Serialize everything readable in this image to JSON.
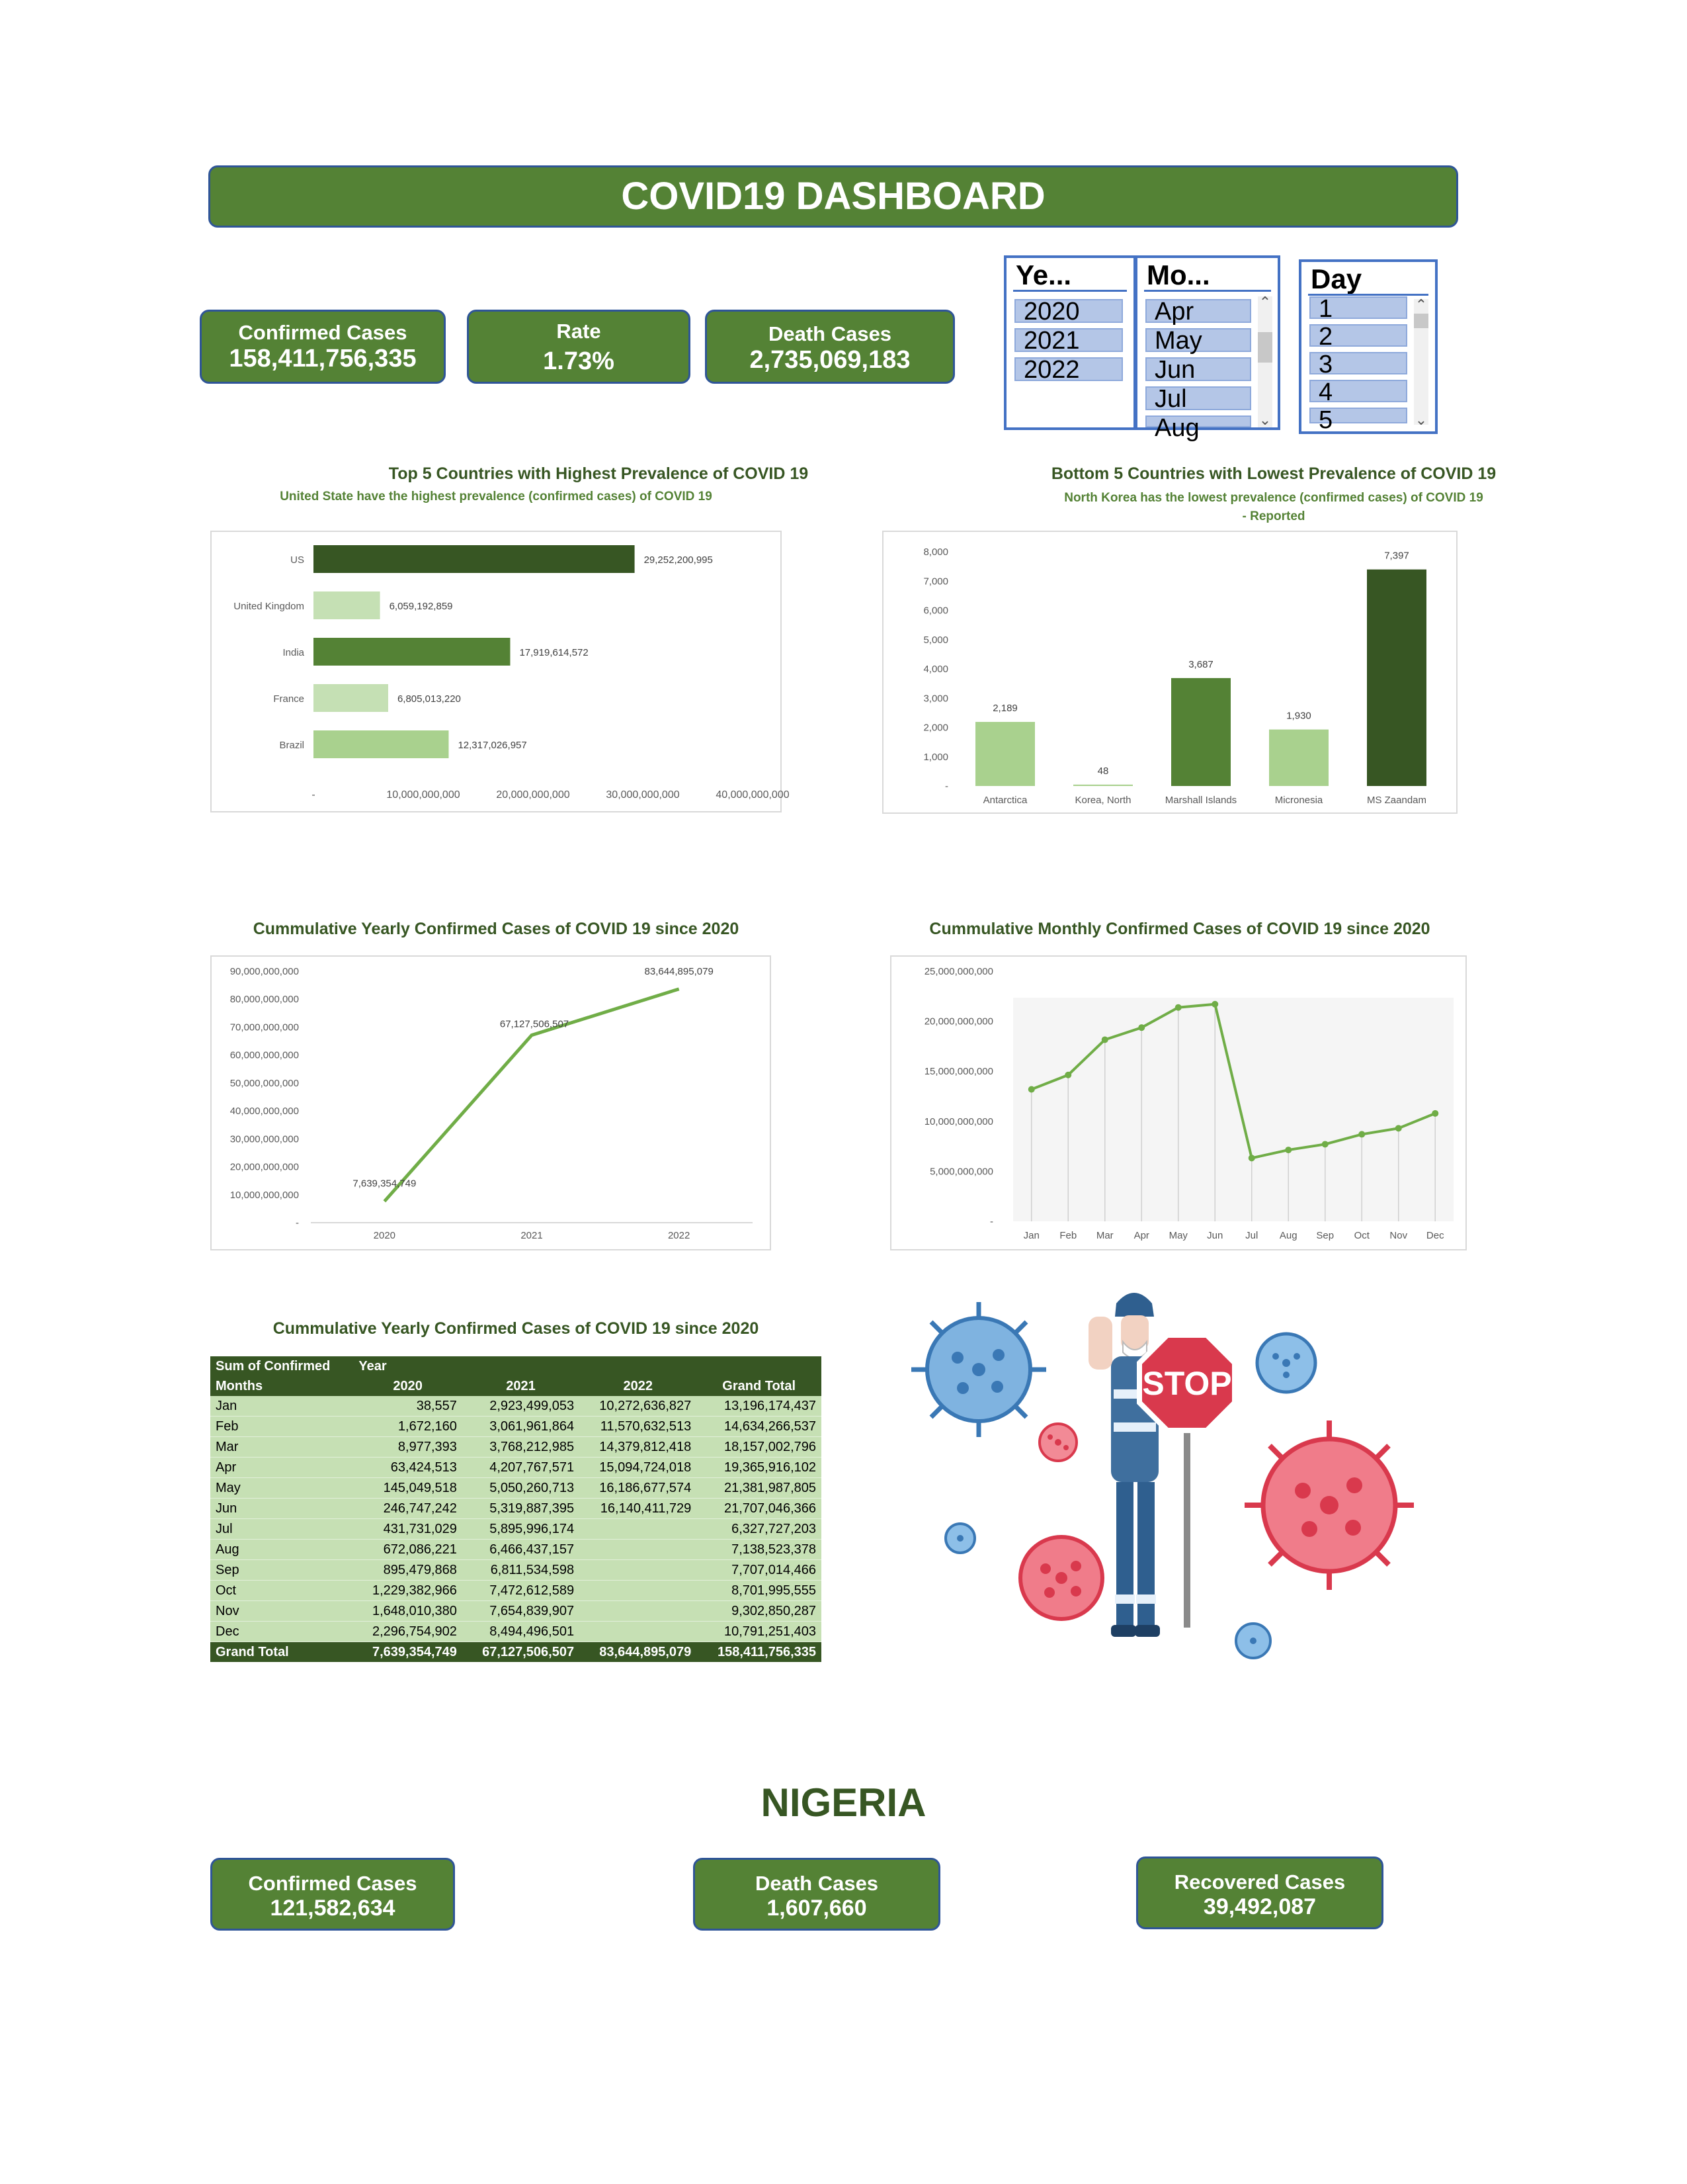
{
  "dashboard": {
    "title": "COVID19 DASHBOARD"
  },
  "kpis": {
    "confirmed": {
      "label": "Confirmed Cases",
      "value": "158,411,756,335"
    },
    "rate": {
      "label": "Rate",
      "value": "1.73%"
    },
    "deaths": {
      "label": "Death Cases",
      "value": "2,735,069,183"
    }
  },
  "slicers": {
    "year": {
      "header": "Ye...",
      "items": [
        "2020",
        "2021",
        "2022"
      ]
    },
    "month": {
      "header": "Mo...",
      "items": [
        "Apr",
        "May",
        "Jun",
        "Jul",
        "Aug"
      ]
    },
    "day": {
      "header": "Day",
      "items": [
        "1",
        "2",
        "3",
        "4",
        "5"
      ]
    }
  },
  "charts": {
    "top5": {
      "title": "Top 5 Countries with Highest Prevalence of COVID 19",
      "subtitle": "United State have the highest prevalence (confirmed cases) of COVID 19"
    },
    "bottom5": {
      "title": "Bottom 5 Countries with Lowest Prevalence of COVID 19",
      "subtitle1": "North Korea has the lowest prevalence (confirmed cases) of COVID 19",
      "subtitle2": "- Reported"
    },
    "yearly": {
      "title": "Cummulative Yearly Confirmed Cases of COVID 19 since 2020"
    },
    "monthly": {
      "title": "Cummulative Monthly Confirmed Cases of COVID 19 since 2020"
    }
  },
  "chart_data": [
    {
      "type": "bar",
      "orientation": "horizontal",
      "categories": [
        "US",
        "United Kingdom",
        "India",
        "France",
        "Brazil"
      ],
      "values": [
        29252200995,
        6059192859,
        17919614572,
        6805013220,
        12317026957
      ],
      "value_labels": [
        "29,252,200,995",
        "6,059,192,859",
        "17,919,614,572",
        "6,805,013,220",
        "12,317,026,957"
      ],
      "colors": [
        "#375623",
        "#c5e0b4",
        "#548235",
        "#c5e0b4",
        "#a9d18e"
      ],
      "xlim": [
        0,
        40000000000
      ],
      "xticks": [
        "-",
        "10,000,000,000",
        "20,000,000,000",
        "30,000,000,000",
        "40,000,000,000"
      ],
      "title": "Top 5 Countries with Highest Prevalence of COVID 19"
    },
    {
      "type": "bar",
      "categories": [
        "Antarctica",
        "Korea, North",
        "Marshall Islands",
        "Micronesia",
        "MS Zaandam"
      ],
      "values": [
        2189,
        48,
        3687,
        1930,
        7397
      ],
      "value_labels": [
        "2,189",
        "48",
        "3,687",
        "1,930",
        "7,397"
      ],
      "colors": [
        "#a9d18e",
        "#a9d18e",
        "#548235",
        "#a9d18e",
        "#375623"
      ],
      "ylim": [
        0,
        8000
      ],
      "yticks": [
        "-",
        "1,000",
        "2,000",
        "3,000",
        "4,000",
        "5,000",
        "6,000",
        "7,000",
        "8,000"
      ],
      "title": "Bottom 5 Countries with Lowest Prevalence of COVID 19"
    },
    {
      "type": "line",
      "x": [
        "2020",
        "2021",
        "2022"
      ],
      "values": [
        7639354749,
        67127506507,
        83644895079
      ],
      "value_labels": [
        "7,639,354,749",
        "67,127,506,507",
        "83,644,895,079"
      ],
      "ylim": [
        0,
        90000000000
      ],
      "yticks": [
        "-",
        "10,000,000,000",
        "20,000,000,000",
        "30,000,000,000",
        "40,000,000,000",
        "50,000,000,000",
        "60,000,000,000",
        "70,000,000,000",
        "80,000,000,000",
        "90,000,000,000"
      ],
      "color": "#70ad47",
      "title": "Cummulative Yearly Confirmed Cases of COVID 19 since 2020"
    },
    {
      "type": "line",
      "x": [
        "Jan",
        "Feb",
        "Mar",
        "Apr",
        "May",
        "Jun",
        "Jul",
        "Aug",
        "Sep",
        "Oct",
        "Nov",
        "Dec"
      ],
      "values": [
        13196174437,
        14634266537,
        18157002796,
        19365916102,
        21381987805,
        21707046366,
        6327727203,
        7138523378,
        7707014466,
        8701995555,
        9302850287,
        10791251403
      ],
      "ylim": [
        0,
        25000000000
      ],
      "yticks": [
        "-",
        "5,000,000,000",
        "10,000,000,000",
        "15,000,000,000",
        "20,000,000,000",
        "25,000,000,000"
      ],
      "color": "#70ad47",
      "title": "Cummulative Monthly Confirmed Cases of COVID 19 since 2020"
    }
  ],
  "pivot": {
    "title": "Cummulative Yearly Confirmed Cases of COVID 19 since 2020",
    "corner": "Sum of Confirmed",
    "col_field": "Year",
    "row_field": "Months",
    "columns": [
      "2020",
      "2021",
      "2022",
      "Grand Total"
    ],
    "rows": [
      [
        "Jan",
        "38,557",
        "2,923,499,053",
        "10,272,636,827",
        "13,196,174,437"
      ],
      [
        "Feb",
        "1,672,160",
        "3,061,961,864",
        "11,570,632,513",
        "14,634,266,537"
      ],
      [
        "Mar",
        "8,977,393",
        "3,768,212,985",
        "14,379,812,418",
        "18,157,002,796"
      ],
      [
        "Apr",
        "63,424,513",
        "4,207,767,571",
        "15,094,724,018",
        "19,365,916,102"
      ],
      [
        "May",
        "145,049,518",
        "5,050,260,713",
        "16,186,677,574",
        "21,381,987,805"
      ],
      [
        "Jun",
        "246,747,242",
        "5,319,887,395",
        "16,140,411,729",
        "21,707,046,366"
      ],
      [
        "Jul",
        "431,731,029",
        "5,895,996,174",
        "",
        "6,327,727,203"
      ],
      [
        "Aug",
        "672,086,221",
        "6,466,437,157",
        "",
        "7,138,523,378"
      ],
      [
        "Sep",
        "895,479,868",
        "6,811,534,598",
        "",
        "7,707,014,466"
      ],
      [
        "Oct",
        "1,229,382,966",
        "7,472,612,589",
        "",
        "8,701,995,555"
      ],
      [
        "Nov",
        "1,648,010,380",
        "7,654,839,907",
        "",
        "9,302,850,287"
      ],
      [
        "Dec",
        "2,296,754,902",
        "8,494,496,501",
        "",
        "10,791,251,403"
      ]
    ],
    "total": [
      "Grand Total",
      "7,639,354,749",
      "67,127,506,507",
      "83,644,895,079",
      "158,411,756,335"
    ]
  },
  "illustration": {
    "sign_text": "STOP"
  },
  "nigeria": {
    "title": "NIGERIA",
    "confirmed": {
      "label": "Confirmed Cases",
      "value": "121,582,634"
    },
    "deaths": {
      "label": "Death Cases",
      "value": "1,607,660"
    },
    "recovered": {
      "label": "Recovered Cases",
      "value": "39,492,087"
    }
  }
}
